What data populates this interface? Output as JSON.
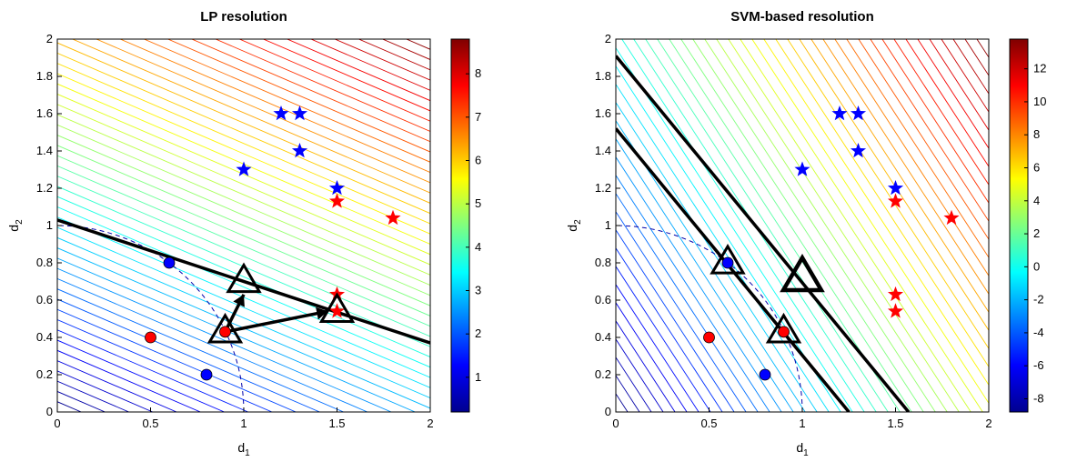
{
  "chart_data": [
    {
      "type": "contour",
      "title": "LP resolution",
      "xlabel": {
        "base": "d",
        "sub": "1"
      },
      "ylabel": {
        "base": "d",
        "sub": "2"
      },
      "xlim": [
        0,
        2
      ],
      "ylim": [
        0,
        2
      ],
      "xticks": [
        "0",
        "0.5",
        "1",
        "1.5",
        "2"
      ],
      "yticks": [
        "0",
        "0.2",
        "0.4",
        "0.6",
        "0.8",
        "1",
        "1.2",
        "1.4",
        "1.6",
        "1.8",
        "2"
      ],
      "colorbar": {
        "min": 0.2,
        "max": 8.8,
        "ticks": [
          "1",
          "2",
          "3",
          "4",
          "5",
          "6",
          "7",
          "8"
        ],
        "tick_values": [
          1,
          2,
          3,
          4,
          5,
          6,
          7,
          8
        ]
      },
      "contour_direction": [
        0.43,
        1.0
      ],
      "blue_stars": [
        [
          1.2,
          1.6
        ],
        [
          1.3,
          1.6
        ],
        [
          1.3,
          1.4
        ],
        [
          1.0,
          1.3
        ],
        [
          1.5,
          1.2
        ]
      ],
      "red_stars": [
        [
          1.5,
          1.13
        ],
        [
          1.8,
          1.04
        ],
        [
          1.5,
          0.63
        ],
        [
          1.5,
          0.54
        ]
      ],
      "blue_circles": [
        [
          0.6,
          0.8
        ],
        [
          0.8,
          0.2
        ]
      ],
      "red_circles": [
        [
          0.5,
          0.4
        ],
        [
          0.9,
          0.43
        ]
      ],
      "triangles": [
        [
          0.9,
          0.43
        ],
        [
          1.0,
          0.7
        ],
        [
          1.5,
          0.54
        ]
      ],
      "arrows": [
        [
          [
            0.9,
            0.43
          ],
          [
            1.0,
            0.63
          ]
        ],
        [
          [
            0.9,
            0.43
          ],
          [
            1.45,
            0.54
          ]
        ]
      ],
      "decision_lines": [
        [
          [
            0,
            1.03
          ],
          [
            2,
            0.37
          ]
        ]
      ],
      "dashed_arc": {
        "center": [
          0,
          0
        ],
        "radius": 1.0
      }
    },
    {
      "type": "contour",
      "title": "SVM-based resolution",
      "xlabel": {
        "base": "d",
        "sub": "1"
      },
      "ylabel": {
        "base": "d",
        "sub": "2"
      },
      "xlim": [
        0,
        2
      ],
      "ylim": [
        0,
        2
      ],
      "xticks": [
        "0",
        "0.5",
        "1",
        "1.5",
        "2"
      ],
      "yticks": [
        "0",
        "0.2",
        "0.4",
        "0.6",
        "0.8",
        "1",
        "1.2",
        "1.4",
        "1.6",
        "1.8",
        "2"
      ],
      "colorbar": {
        "min": -8.8,
        "max": 13.8,
        "ticks": [
          "-8",
          "-6",
          "-4",
          "-2",
          "0",
          "2",
          "4",
          "6",
          "8",
          "10",
          "12"
        ],
        "tick_values": [
          -8,
          -6,
          -4,
          -2,
          0,
          2,
          4,
          6,
          8,
          10,
          12
        ]
      },
      "contour_direction": [
        1.0,
        0.65
      ],
      "blue_stars": [
        [
          1.2,
          1.6
        ],
        [
          1.3,
          1.6
        ],
        [
          1.3,
          1.4
        ],
        [
          1.0,
          1.3
        ],
        [
          1.5,
          1.2
        ]
      ],
      "red_stars": [
        [
          1.5,
          1.13
        ],
        [
          1.8,
          1.04
        ],
        [
          1.5,
          0.63
        ],
        [
          1.5,
          0.54
        ]
      ],
      "blue_circles": [
        [
          0.6,
          0.8
        ],
        [
          0.8,
          0.2
        ]
      ],
      "red_circles": [
        [
          0.5,
          0.4
        ],
        [
          0.9,
          0.43
        ]
      ],
      "triangles": [
        [
          0.6,
          0.8
        ],
        [
          0.9,
          0.43
        ],
        [
          1.0,
          0.72
        ]
      ],
      "bold_triangles": [
        [
          1.0,
          0.72
        ]
      ],
      "arrows": [],
      "decision_lines": [
        [
          [
            0,
            1.52
          ],
          [
            1.25,
            0
          ]
        ],
        [
          [
            0,
            1.91
          ],
          [
            1.57,
            0
          ]
        ]
      ],
      "dashed_arc": {
        "center": [
          0,
          0
        ],
        "radius": 1.0
      }
    }
  ]
}
